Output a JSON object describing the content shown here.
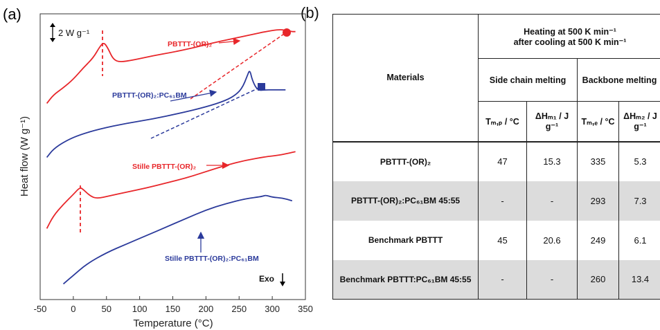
{
  "panel_a": {
    "label": "(a)"
  },
  "panel_b": {
    "label": "(b)"
  },
  "chart_data": {
    "type": "line",
    "xlabel": "Temperature (°C)",
    "ylabel": "Heat flow (W g⁻¹)",
    "xlim": [
      -50,
      350
    ],
    "xticks": [
      "-50",
      "0",
      "50",
      "100",
      "150",
      "200",
      "250",
      "300",
      "350"
    ],
    "scale_bar_label": "2 W g⁻¹",
    "exo_label": "Exo",
    "series": [
      {
        "name": "PBTTT-(OR)₂",
        "color": "#e8262a",
        "x": [
          -40,
          -30,
          -15,
          0,
          15,
          30,
          40,
          46,
          52,
          60,
          70,
          90,
          120,
          150,
          180,
          210,
          240,
          270,
          290,
          310,
          320,
          330,
          335
        ],
        "y": [
          -3.7,
          -3.1,
          -2.6,
          -2.0,
          -1.2,
          -0.5,
          0.3,
          0.6,
          0.2,
          -0.6,
          -0.8,
          -0.65,
          -0.35,
          -0.1,
          0.2,
          0.55,
          0.85,
          1.15,
          1.35,
          1.5,
          1.45,
          1.35,
          1.35
        ]
      },
      {
        "name": "PBTTT-(OR)₂:PC₆₁BM",
        "color": "#2b3a9b",
        "x": [
          -40,
          -30,
          -10,
          10,
          40,
          80,
          120,
          160,
          200,
          230,
          245,
          255,
          262,
          266,
          270,
          278,
          290,
          300,
          310,
          320
        ],
        "y": [
          -7.5,
          -6.9,
          -6.3,
          -5.9,
          -5.5,
          -5.1,
          -4.8,
          -4.4,
          -3.95,
          -3.5,
          -3.1,
          -2.6,
          -1.8,
          -1.3,
          -2.1,
          -2.8,
          -2.75,
          -2.75,
          -2.75,
          -2.75
        ]
      },
      {
        "name": "Stille PBTTT-(OR)₂",
        "color": "#e8262a",
        "x": [
          -40,
          -30,
          -15,
          0,
          10,
          15,
          25,
          35,
          55,
          80,
          110,
          140,
          170,
          200,
          230,
          260,
          290,
          310,
          325,
          335
        ],
        "y": [
          -12.5,
          -11.6,
          -10.8,
          -10.1,
          -9.6,
          -9.75,
          -10.2,
          -10.4,
          -10.2,
          -9.95,
          -9.65,
          -9.3,
          -8.95,
          -8.5,
          -8.05,
          -7.7,
          -7.45,
          -7.35,
          -7.2,
          -7.1
        ]
      },
      {
        "name": "Stille PBTTT-(OR)₂:PC₆₁BM",
        "color": "#2b3a9b",
        "x": [
          -15,
          0,
          20,
          50,
          80,
          110,
          140,
          170,
          200,
          230,
          260,
          285,
          290,
          300,
          315,
          330
        ],
        "y": [
          -16.4,
          -15.8,
          -15.0,
          -14.2,
          -13.6,
          -13.0,
          -12.4,
          -11.8,
          -11.2,
          -10.75,
          -10.4,
          -10.25,
          -10.15,
          -10.3,
          -10.35,
          -10.55
        ]
      }
    ],
    "annotations": [
      {
        "text": "PBTTT-(OR)₂",
        "color": "#e8262a"
      },
      {
        "text": "PBTTT-(OR)₂:PC₆₁BM",
        "color": "#2b3a9b"
      },
      {
        "text": "Stille PBTTT-(OR)₂",
        "color": "#e8262a"
      },
      {
        "text": "Stille PBTTT-(OR)₂:PC₆₁BM",
        "color": "#2b3a9b"
      }
    ]
  },
  "table": {
    "materials_header": "Materials",
    "group_header_line1": "Heating at 500 K min⁻¹",
    "group_header_line2": "after cooling at 500 K min⁻¹",
    "side_chain_header": "Side chain melting",
    "backbone_header": "Backbone melting",
    "col_tmp": "Tₘ,ₚ / °C",
    "col_dhm1": "ΔHₘ₁ / J g⁻¹",
    "col_tme": "Tₘ,ₑ / °C",
    "col_dhm2": "ΔHₘ₂ / J g⁻¹",
    "rows": [
      {
        "material": "PBTTT-(OR)₂",
        "tmp": "47",
        "dh1": "15.3",
        "tme": "335",
        "dh2": "5.3"
      },
      {
        "material": "PBTTT-(OR)₂:PC₆₁BM 45:55",
        "tmp": "-",
        "dh1": "-",
        "tme": "293",
        "dh2": "7.3"
      },
      {
        "material": "Benchmark PBTTT",
        "tmp": "45",
        "dh1": "20.6",
        "tme": "249",
        "dh2": "6.1"
      },
      {
        "material": "Benchmark PBTTT:PC₆₁BM 45:55",
        "tmp": "-",
        "dh1": "-",
        "tme": "260",
        "dh2": "13.4"
      }
    ]
  }
}
